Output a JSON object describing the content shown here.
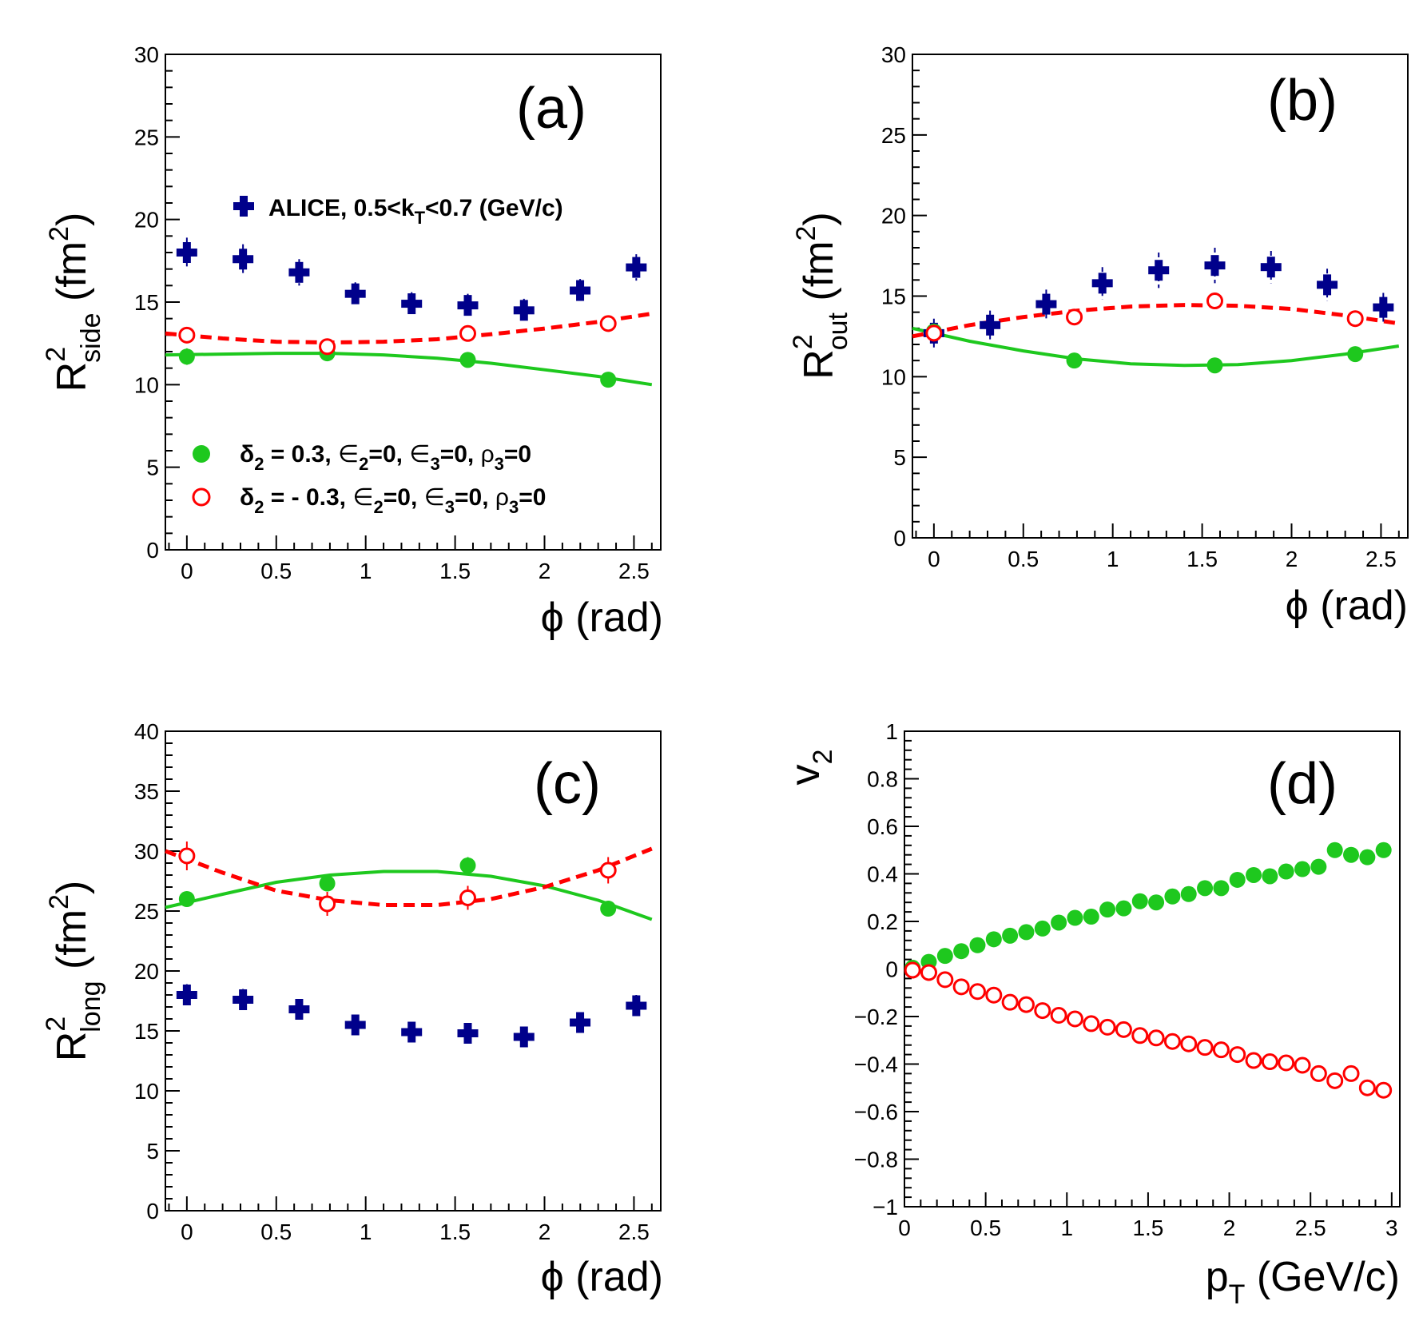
{
  "colors": {
    "alice": "#00008b",
    "green": "#1ec81e",
    "red": "#ff0000",
    "axis": "#000000"
  },
  "legend": {
    "alice": {
      "prefix": "ALICE, 0.5<k",
      "sub": "T",
      "suffix": "<0.7 (GeV/c)"
    },
    "green": {
      "delta": "δ",
      "sub2": "2",
      "t1": " = 0.3, ",
      "eps": "∈",
      "t2": "=0, ",
      "t3": "=0, ",
      "rho": "ρ",
      "sub3": "3",
      "t4": "=0"
    },
    "red": {
      "delta": "δ",
      "sub2": "2",
      "t1": " = - 0.3, ",
      "eps": "∈",
      "t2": "=0, ",
      "t3": "=0, ",
      "rho": "ρ",
      "sub3": "3",
      "t4": "=0"
    }
  },
  "chart_data": [
    {
      "id": "a",
      "type": "scatter",
      "tag": "(a)",
      "ylabel": {
        "base": "R",
        "sup": "2",
        "sub": "side",
        "unit": " (fm",
        "unitsup": "2",
        "close": ")"
      },
      "xlabel": {
        "main": "ϕ (rad)"
      },
      "xlim": [
        -0.12,
        2.65
      ],
      "ylim": [
        0,
        30
      ],
      "xticks": [
        0,
        0.5,
        1,
        1.5,
        2,
        2.5
      ],
      "xtick_labels": [
        "0",
        "0.5",
        "1",
        "1.5",
        "2",
        "2.5"
      ],
      "yticks": [
        0,
        5,
        10,
        15,
        20,
        25,
        30
      ],
      "ytick_labels": [
        "0",
        "5",
        "10",
        "15",
        "20",
        "25",
        "30"
      ],
      "series": [
        {
          "name": "ALICE, 0.5<kT<0.7 (GeV/c)",
          "style": "alice",
          "x": [
            0,
            0.314,
            0.628,
            0.942,
            1.257,
            1.571,
            1.885,
            2.199,
            2.513
          ],
          "y": [
            18.0,
            17.6,
            16.8,
            15.5,
            14.9,
            14.8,
            14.5,
            15.7,
            17.1
          ],
          "err": [
            0.9,
            0.9,
            0.8,
            0.7,
            0.7,
            0.7,
            0.7,
            0.7,
            0.8
          ]
        },
        {
          "name": "δ2 = 0.3 points",
          "style": "green-dot",
          "x": [
            0,
            0.785,
            1.571,
            2.356
          ],
          "y": [
            11.7,
            11.9,
            11.5,
            10.3
          ],
          "err": [
            0.5,
            0.4,
            0.3,
            0.4
          ]
        },
        {
          "name": "δ2 = -0.3 points",
          "style": "red-ring",
          "x": [
            0,
            0.785,
            1.571,
            2.356
          ],
          "y": [
            13.0,
            12.3,
            13.1,
            13.7
          ],
          "err": [
            0.3,
            0.3,
            0.3,
            0.3
          ]
        },
        {
          "name": "δ2 = 0.3 curve",
          "style": "green-line",
          "x": [
            -0.12,
            0.2,
            0.5,
            0.8,
            1.1,
            1.4,
            1.7,
            2.0,
            2.3,
            2.6
          ],
          "y": [
            11.8,
            11.85,
            11.9,
            11.9,
            11.8,
            11.6,
            11.3,
            10.9,
            10.5,
            10.0
          ]
        },
        {
          "name": "δ2 = -0.3 curve",
          "style": "red-dash",
          "x": [
            -0.12,
            0.2,
            0.5,
            0.8,
            1.1,
            1.4,
            1.7,
            2.0,
            2.3,
            2.6
          ],
          "y": [
            13.1,
            12.8,
            12.6,
            12.55,
            12.6,
            12.75,
            13.05,
            13.4,
            13.8,
            14.3
          ]
        }
      ]
    },
    {
      "id": "b",
      "type": "scatter",
      "tag": "(b)",
      "ylabel": {
        "base": "R",
        "sup": "2",
        "sub": "out",
        "unit": " (fm",
        "unitsup": "2",
        "close": ")"
      },
      "xlabel": {
        "main": "ϕ (rad)"
      },
      "xlim": [
        -0.12,
        2.65
      ],
      "ylim": [
        0,
        30
      ],
      "xticks": [
        0,
        0.5,
        1,
        1.5,
        2,
        2.5
      ],
      "xtick_labels": [
        "0",
        "0.5",
        "1",
        "1.5",
        "2",
        "2.5"
      ],
      "yticks": [
        0,
        5,
        10,
        15,
        20,
        25,
        30
      ],
      "ytick_labels": [
        "0",
        "5",
        "10",
        "15",
        "20",
        "25",
        "30"
      ],
      "series": [
        {
          "name": "ALICE",
          "style": "alice",
          "x": [
            0,
            0.314,
            0.628,
            0.942,
            1.257,
            1.571,
            1.885,
            2.199,
            2.513
          ],
          "y": [
            12.7,
            13.2,
            14.5,
            15.8,
            16.6,
            16.9,
            16.8,
            15.7,
            14.3
          ],
          "err": [
            0.9,
            0.9,
            0.9,
            1.0,
            1.1,
            1.1,
            1.0,
            1.0,
            0.9
          ]
        },
        {
          "name": "δ2 = 0.3 points",
          "style": "green-dot",
          "x": [
            0,
            0.785,
            1.571,
            2.356
          ],
          "y": [
            12.8,
            11.0,
            10.7,
            11.4
          ],
          "err": [
            0.3,
            0.3,
            0.3,
            0.4
          ]
        },
        {
          "name": "δ2 = -0.3 points",
          "style": "red-ring",
          "x": [
            0,
            0.785,
            1.571,
            2.356
          ],
          "y": [
            12.7,
            13.7,
            14.7,
            13.6
          ],
          "err": [
            0.3,
            0.3,
            0.3,
            0.3
          ]
        },
        {
          "name": "δ2 = 0.3 curve",
          "style": "green-line",
          "x": [
            -0.12,
            0.2,
            0.5,
            0.8,
            1.1,
            1.4,
            1.7,
            2.0,
            2.3,
            2.6
          ],
          "y": [
            13.0,
            12.2,
            11.6,
            11.1,
            10.8,
            10.7,
            10.75,
            11.0,
            11.4,
            11.9
          ]
        },
        {
          "name": "δ2 = -0.3 curve",
          "style": "red-dash",
          "x": [
            -0.12,
            0.2,
            0.5,
            0.8,
            1.1,
            1.4,
            1.7,
            2.0,
            2.3,
            2.6
          ],
          "y": [
            12.5,
            13.2,
            13.7,
            14.1,
            14.35,
            14.45,
            14.4,
            14.2,
            13.8,
            13.3
          ]
        }
      ]
    },
    {
      "id": "c",
      "type": "scatter",
      "tag": "(c)",
      "ylabel": {
        "base": "R",
        "sup": "2",
        "sub": "long",
        "unit": " (fm",
        "unitsup": "2",
        "close": ")"
      },
      "xlabel": {
        "main": "ϕ (rad)"
      },
      "xlim": [
        -0.12,
        2.65
      ],
      "ylim": [
        0,
        40
      ],
      "xticks": [
        0,
        0.5,
        1,
        1.5,
        2,
        2.5
      ],
      "xtick_labels": [
        "0",
        "0.5",
        "1",
        "1.5",
        "2",
        "2.5"
      ],
      "yticks": [
        0,
        5,
        10,
        15,
        20,
        25,
        30,
        35,
        40
      ],
      "ytick_labels": [
        "0",
        "5",
        "10",
        "15",
        "20",
        "25",
        "30",
        "35",
        "40"
      ],
      "series": [
        {
          "name": "ALICE",
          "style": "alice",
          "x": [
            0,
            0.314,
            0.628,
            0.942,
            1.257,
            1.571,
            1.885,
            2.199,
            2.513
          ],
          "y": [
            18.0,
            17.6,
            16.8,
            15.5,
            14.9,
            14.8,
            14.5,
            15.7,
            17.1
          ],
          "err": [
            0.9,
            0.9,
            0.8,
            0.8,
            0.8,
            0.8,
            0.8,
            0.8,
            0.9
          ]
        },
        {
          "name": "δ2 = 0.3 points",
          "style": "green-dot",
          "x": [
            0,
            0.785,
            1.571,
            2.356
          ],
          "y": [
            26.0,
            27.3,
            28.8,
            25.2
          ],
          "err": [
            0.4,
            0.6,
            0.7,
            0.4
          ]
        },
        {
          "name": "δ2 = -0.3 points",
          "style": "red-ring",
          "x": [
            0,
            0.785,
            1.571,
            2.356
          ],
          "y": [
            29.6,
            25.6,
            26.1,
            28.4
          ],
          "err": [
            1.2,
            1.0,
            1.0,
            1.1
          ]
        },
        {
          "name": "δ2 = 0.3 curve",
          "style": "green-line",
          "x": [
            -0.12,
            0.2,
            0.5,
            0.8,
            1.1,
            1.4,
            1.7,
            2.0,
            2.3,
            2.6
          ],
          "y": [
            25.3,
            26.4,
            27.4,
            28.0,
            28.3,
            28.3,
            27.9,
            27.1,
            25.9,
            24.3
          ]
        },
        {
          "name": "δ2 = -0.3 curve",
          "style": "red-dash",
          "x": [
            -0.12,
            0.2,
            0.5,
            0.8,
            1.1,
            1.4,
            1.7,
            2.0,
            2.3,
            2.6
          ],
          "y": [
            30.0,
            28.2,
            26.7,
            25.9,
            25.5,
            25.5,
            26.0,
            27.0,
            28.4,
            30.2
          ]
        }
      ]
    },
    {
      "id": "d",
      "type": "scatter",
      "tag": "(d)",
      "ylabel": {
        "base": "v",
        "sub": "2"
      },
      "xlabel": {
        "main": "p",
        "sub": "T",
        "rest": " (GeV/c)"
      },
      "xlim": [
        0,
        3.05
      ],
      "ylim": [
        -1,
        1
      ],
      "xticks": [
        0,
        0.5,
        1,
        1.5,
        2,
        2.5,
        3
      ],
      "xtick_labels": [
        "0",
        "0.5",
        "1",
        "1.5",
        "2",
        "2.5",
        "3"
      ],
      "yticks": [
        -1,
        -0.8,
        -0.6,
        -0.4,
        -0.2,
        0,
        0.2,
        0.4,
        0.6,
        0.8,
        1
      ],
      "ytick_labels": [
        "−1",
        "−0.8",
        "−0.6",
        "−0.4",
        "−0.2",
        "0",
        "0.2",
        "0.4",
        "0.6",
        "0.8",
        "1"
      ],
      "series": [
        {
          "name": "δ2 = 0.3 v2",
          "style": "green-dot",
          "x": [
            0.05,
            0.15,
            0.25,
            0.35,
            0.45,
            0.55,
            0.65,
            0.75,
            0.85,
            0.95,
            1.05,
            1.15,
            1.25,
            1.35,
            1.45,
            1.55,
            1.65,
            1.75,
            1.85,
            1.95,
            2.05,
            2.15,
            2.25,
            2.35,
            2.45,
            2.55,
            2.65,
            2.75,
            2.85,
            2.95
          ],
          "y": [
            0.005,
            0.03,
            0.055,
            0.075,
            0.1,
            0.125,
            0.14,
            0.155,
            0.17,
            0.195,
            0.215,
            0.22,
            0.25,
            0.255,
            0.285,
            0.28,
            0.305,
            0.315,
            0.34,
            0.34,
            0.375,
            0.395,
            0.39,
            0.41,
            0.42,
            0.43,
            0.5,
            0.48,
            0.47,
            0.5
          ]
        },
        {
          "name": "δ2 = -0.3 v2",
          "style": "red-ring",
          "x": [
            0.05,
            0.15,
            0.25,
            0.35,
            0.45,
            0.55,
            0.65,
            0.75,
            0.85,
            0.95,
            1.05,
            1.15,
            1.25,
            1.35,
            1.45,
            1.55,
            1.65,
            1.75,
            1.85,
            1.95,
            2.05,
            2.15,
            2.25,
            2.35,
            2.45,
            2.55,
            2.65,
            2.75,
            2.85,
            2.95
          ],
          "y": [
            -0.005,
            -0.015,
            -0.045,
            -0.075,
            -0.095,
            -0.11,
            -0.14,
            -0.15,
            -0.175,
            -0.195,
            -0.21,
            -0.23,
            -0.245,
            -0.255,
            -0.28,
            -0.29,
            -0.305,
            -0.315,
            -0.33,
            -0.34,
            -0.36,
            -0.385,
            -0.39,
            -0.395,
            -0.405,
            -0.44,
            -0.47,
            -0.44,
            -0.5,
            -0.51
          ]
        }
      ]
    }
  ]
}
